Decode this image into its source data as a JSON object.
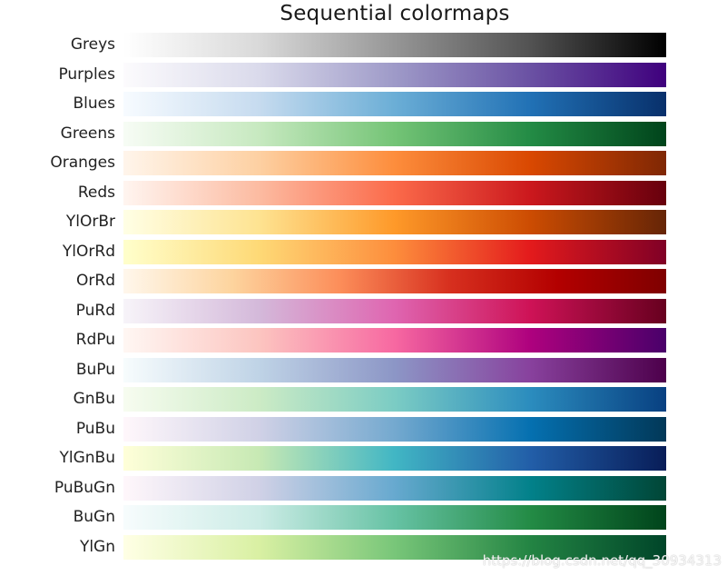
{
  "chart_data": {
    "type": "heatmap",
    "title": "Sequential colormaps",
    "colormaps": [
      {
        "name": "Greys",
        "colors": [
          "#ffffff",
          "#d9d9d9",
          "#969696",
          "#525252",
          "#000000"
        ]
      },
      {
        "name": "Purples",
        "colors": [
          "#fcfbfd",
          "#dadaeb",
          "#9e9ac8",
          "#6a51a3",
          "#3f007d"
        ]
      },
      {
        "name": "Blues",
        "colors": [
          "#f7fbff",
          "#c6dbef",
          "#6baed6",
          "#2171b5",
          "#08306b"
        ]
      },
      {
        "name": "Greens",
        "colors": [
          "#f7fcf5",
          "#c7e9c0",
          "#74c476",
          "#238b45",
          "#00441b"
        ]
      },
      {
        "name": "Oranges",
        "colors": [
          "#fff5eb",
          "#fdd0a2",
          "#fd8d3c",
          "#d94801",
          "#7f2704"
        ]
      },
      {
        "name": "Reds",
        "colors": [
          "#fff5f0",
          "#fcbba1",
          "#fb6a4a",
          "#cb181d",
          "#67000d"
        ]
      },
      {
        "name": "YlOrBr",
        "colors": [
          "#ffffe5",
          "#fee391",
          "#fe9929",
          "#cc4c02",
          "#662506"
        ]
      },
      {
        "name": "YlOrRd",
        "colors": [
          "#ffffcc",
          "#fed976",
          "#fd8d3c",
          "#e31a1c",
          "#800026"
        ]
      },
      {
        "name": "OrRd",
        "colors": [
          "#fff7ec",
          "#fdd49e",
          "#fc8d59",
          "#d7301f",
          "#b30000",
          "#7f0000"
        ]
      },
      {
        "name": "PuRd",
        "colors": [
          "#f7f4f9",
          "#d4b9da",
          "#df65b0",
          "#ce1256",
          "#67001f"
        ]
      },
      {
        "name": "RdPu",
        "colors": [
          "#fff7f3",
          "#fcc5c0",
          "#f768a1",
          "#ae017e",
          "#49006a"
        ]
      },
      {
        "name": "BuPu",
        "colors": [
          "#f7fcfd",
          "#bfd3e6",
          "#8c96c6",
          "#88419d",
          "#4d004b"
        ]
      },
      {
        "name": "GnBu",
        "colors": [
          "#f7fcf0",
          "#ccebc5",
          "#7bccc4",
          "#2b8cbe",
          "#084081"
        ]
      },
      {
        "name": "PuBu",
        "colors": [
          "#fff7fb",
          "#d0d1e6",
          "#74a9cf",
          "#0570b0",
          "#023858"
        ]
      },
      {
        "name": "YlGnBu",
        "colors": [
          "#ffffd9",
          "#c7e9b4",
          "#41b6c4",
          "#225ea8",
          "#081d58"
        ]
      },
      {
        "name": "PuBuGn",
        "colors": [
          "#fff7fb",
          "#d0d1e6",
          "#67a9cf",
          "#02818a",
          "#014636"
        ]
      },
      {
        "name": "BuGn",
        "colors": [
          "#f7fcfd",
          "#ccece6",
          "#66c2a4",
          "#238b45",
          "#00441b"
        ]
      },
      {
        "name": "YlGn",
        "colors": [
          "#ffffe5",
          "#d9f0a3",
          "#78c679",
          "#238443",
          "#004529"
        ]
      }
    ]
  },
  "watermark": "https://blog.csdn.net/qq_30934313"
}
